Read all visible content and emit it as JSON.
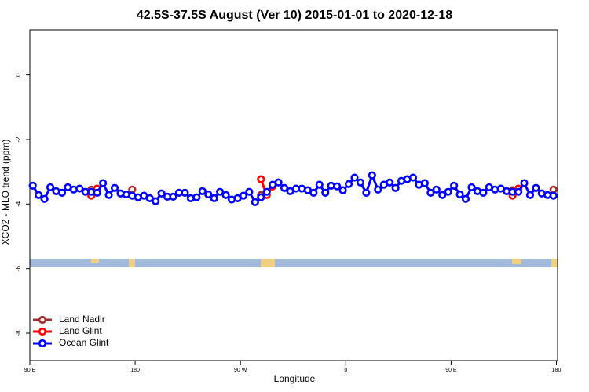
{
  "chart_data": {
    "type": "line",
    "title": "42.5S-37.5S August (Ver 10)   2015-01-01 to 2020-12-18",
    "x_label": "Longitude",
    "y_label": "XCO2 - MLO trend (ppm)",
    "xlim": [
      90,
      541
    ],
    "ylim": [
      -8.85,
      1.4
    ],
    "xticks": [
      {
        "value": 90,
        "label": "90 E"
      },
      {
        "value": 180,
        "label": "180"
      },
      {
        "value": 270,
        "label": "90 W"
      },
      {
        "value": 360,
        "label": "0"
      },
      {
        "value": 450,
        "label": "90 E"
      },
      {
        "value": 540,
        "label": "180"
      }
    ],
    "yticks": [
      0,
      -2,
      -4,
      -6,
      -8
    ],
    "legend_position": "lower left",
    "series": [
      {
        "name": "Land Nadir",
        "color": "#a52a2a",
        "x": [
          142.5,
          147.5,
          177.5,
          287.5,
          502.5,
          537.5
        ],
        "values": [
          -3.55,
          -3.52,
          -3.55,
          -3.72,
          -3.57,
          -3.55
        ]
      },
      {
        "name": "Land Glint",
        "color": "#ff0000",
        "x": [
          142.5,
          147.5,
          287.5,
          292.5,
          297.5,
          502.5,
          507.5
        ],
        "values": [
          -3.74,
          -3.52,
          -3.23,
          -3.72,
          -3.45,
          -3.74,
          -3.52
        ]
      },
      {
        "name": "Ocean Glint",
        "color": "#0000ff",
        "x": [
          92.5,
          97.5,
          102.5,
          107.5,
          112.5,
          117.5,
          122.5,
          127.5,
          132.5,
          137.5,
          142.5,
          147.5,
          152.5,
          157.5,
          162.5,
          167.5,
          172.5,
          177.5,
          182.5,
          187.5,
          192.5,
          197.5,
          202.5,
          207.5,
          212.5,
          217.5,
          222.5,
          227.5,
          232.5,
          237.5,
          242.5,
          247.5,
          252.5,
          257.5,
          262.5,
          267.5,
          272.5,
          277.5,
          282.5,
          287.5,
          292.5,
          297.5,
          302.5,
          307.5,
          312.5,
          317.5,
          322.5,
          327.5,
          332.5,
          337.5,
          342.5,
          347.5,
          352.5,
          357.5,
          362.5,
          367.5,
          372.5,
          377.5,
          382.5,
          387.5,
          392.5,
          397.5,
          402.5,
          407.5,
          412.5,
          417.5,
          422.5,
          427.5,
          432.5,
          437.5,
          442.5,
          447.5,
          452.5,
          457.5,
          462.5,
          467.5,
          472.5,
          477.5,
          482.5,
          487.5,
          492.5,
          497.5,
          502.5,
          507.5,
          512.5,
          517.5,
          522.5,
          527.5,
          532.5,
          537.5
        ],
        "values": [
          -3.43,
          -3.72,
          -3.84,
          -3.48,
          -3.6,
          -3.65,
          -3.48,
          -3.55,
          -3.52,
          -3.62,
          -3.62,
          -3.65,
          -3.35,
          -3.72,
          -3.5,
          -3.67,
          -3.7,
          -3.74,
          -3.79,
          -3.74,
          -3.82,
          -3.91,
          -3.67,
          -3.77,
          -3.77,
          -3.65,
          -3.65,
          -3.82,
          -3.79,
          -3.6,
          -3.7,
          -3.82,
          -3.62,
          -3.72,
          -3.86,
          -3.82,
          -3.74,
          -3.62,
          -3.94,
          -3.79,
          -3.62,
          -3.4,
          -3.33,
          -3.5,
          -3.6,
          -3.52,
          -3.52,
          -3.57,
          -3.65,
          -3.4,
          -3.65,
          -3.43,
          -3.45,
          -3.57,
          -3.38,
          -3.18,
          -3.33,
          -3.65,
          -3.11,
          -3.55,
          -3.4,
          -3.33,
          -3.5,
          -3.28,
          -3.23,
          -3.18,
          -3.4,
          -3.35,
          -3.65,
          -3.55,
          -3.72,
          -3.62,
          -3.43,
          -3.7,
          -3.84,
          -3.48,
          -3.6,
          -3.65,
          -3.48,
          -3.55,
          -3.52,
          -3.6,
          -3.62,
          -3.62,
          -3.35,
          -3.72,
          -3.5,
          -3.67,
          -3.72,
          -3.74
        ]
      }
    ]
  }
}
